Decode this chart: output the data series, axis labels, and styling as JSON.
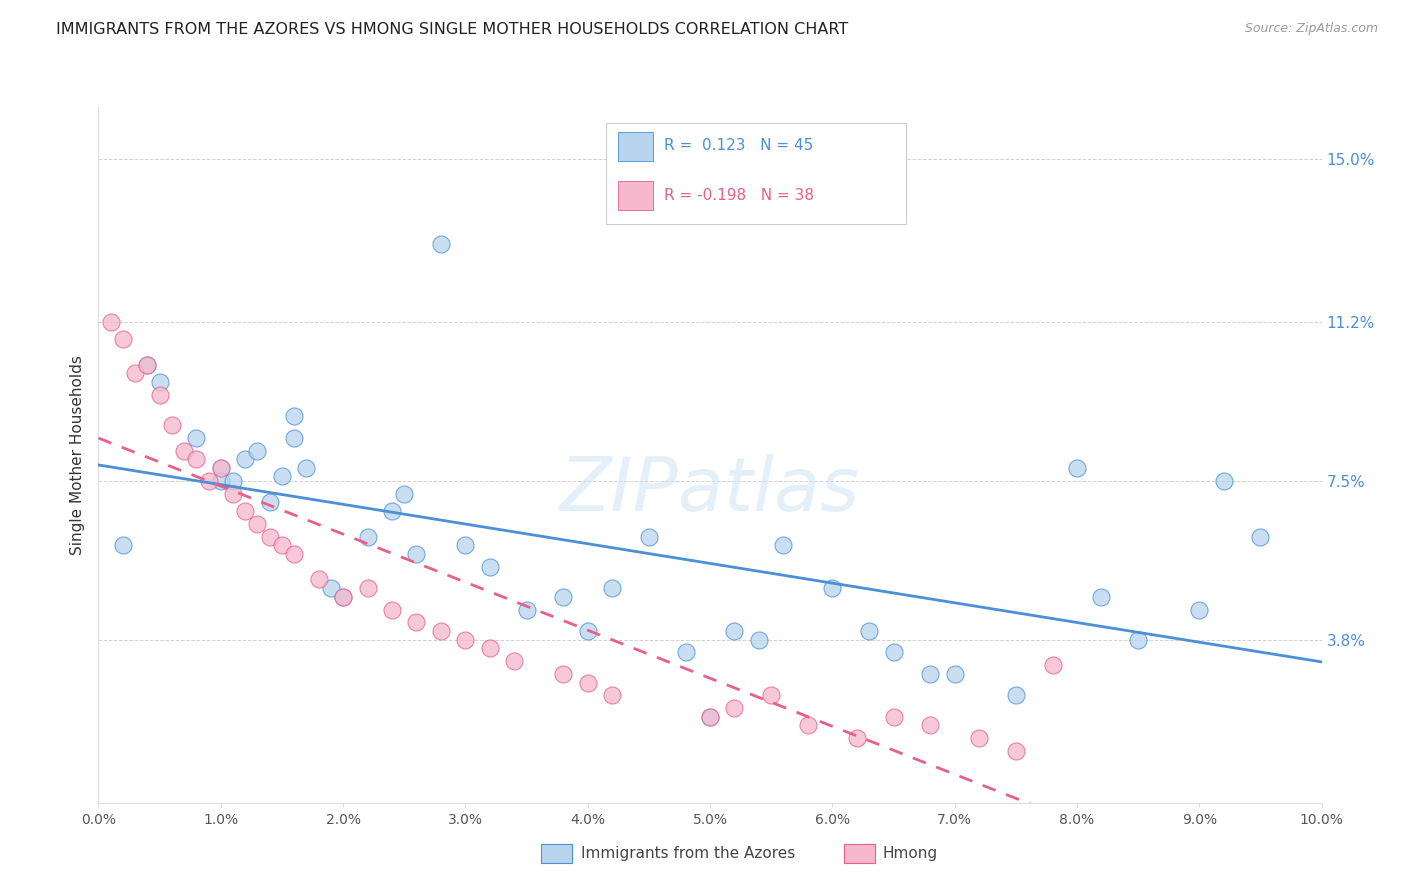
{
  "title": "IMMIGRANTS FROM THE AZORES VS HMONG SINGLE MOTHER HOUSEHOLDS CORRELATION CHART",
  "source": "Source: ZipAtlas.com",
  "ylabel": "Single Mother Households",
  "ytick_labels": [
    "15.0%",
    "11.2%",
    "7.5%",
    "3.8%"
  ],
  "ytick_values": [
    0.15,
    0.112,
    0.075,
    0.038
  ],
  "xmin": 0.0,
  "xmax": 0.1,
  "ymin": 0.0,
  "ymax": 0.162,
  "color_blue": "#b8d4ed",
  "color_pink": "#f5b8cc",
  "trendline_blue": "#4a90d9",
  "trendline_pink": "#e8608a",
  "watermark": "ZIPatlas",
  "azores_x": [
    0.002,
    0.004,
    0.005,
    0.008,
    0.01,
    0.01,
    0.011,
    0.012,
    0.013,
    0.014,
    0.015,
    0.016,
    0.016,
    0.017,
    0.019,
    0.02,
    0.022,
    0.024,
    0.025,
    0.026,
    0.028,
    0.03,
    0.032,
    0.035,
    0.038,
    0.04,
    0.042,
    0.045,
    0.048,
    0.05,
    0.052,
    0.054,
    0.056,
    0.06,
    0.063,
    0.065,
    0.068,
    0.07,
    0.075,
    0.08,
    0.082,
    0.085,
    0.09,
    0.092,
    0.095
  ],
  "azores_y": [
    0.06,
    0.102,
    0.098,
    0.085,
    0.078,
    0.075,
    0.075,
    0.08,
    0.082,
    0.07,
    0.076,
    0.085,
    0.09,
    0.078,
    0.05,
    0.048,
    0.062,
    0.068,
    0.072,
    0.058,
    0.13,
    0.06,
    0.055,
    0.045,
    0.048,
    0.04,
    0.05,
    0.062,
    0.035,
    0.02,
    0.04,
    0.038,
    0.06,
    0.05,
    0.04,
    0.035,
    0.03,
    0.03,
    0.025,
    0.078,
    0.048,
    0.038,
    0.045,
    0.075,
    0.062
  ],
  "hmong_x": [
    0.001,
    0.002,
    0.003,
    0.004,
    0.005,
    0.006,
    0.007,
    0.008,
    0.009,
    0.01,
    0.011,
    0.012,
    0.013,
    0.014,
    0.015,
    0.016,
    0.018,
    0.02,
    0.022,
    0.024,
    0.026,
    0.028,
    0.03,
    0.032,
    0.034,
    0.038,
    0.04,
    0.042,
    0.05,
    0.052,
    0.055,
    0.058,
    0.062,
    0.065,
    0.068,
    0.072,
    0.075,
    0.078
  ],
  "hmong_y": [
    0.112,
    0.108,
    0.1,
    0.102,
    0.095,
    0.088,
    0.082,
    0.08,
    0.075,
    0.078,
    0.072,
    0.068,
    0.065,
    0.062,
    0.06,
    0.058,
    0.052,
    0.048,
    0.05,
    0.045,
    0.042,
    0.04,
    0.038,
    0.036,
    0.033,
    0.03,
    0.028,
    0.025,
    0.02,
    0.022,
    0.025,
    0.018,
    0.015,
    0.02,
    0.018,
    0.015,
    0.012,
    0.032
  ]
}
